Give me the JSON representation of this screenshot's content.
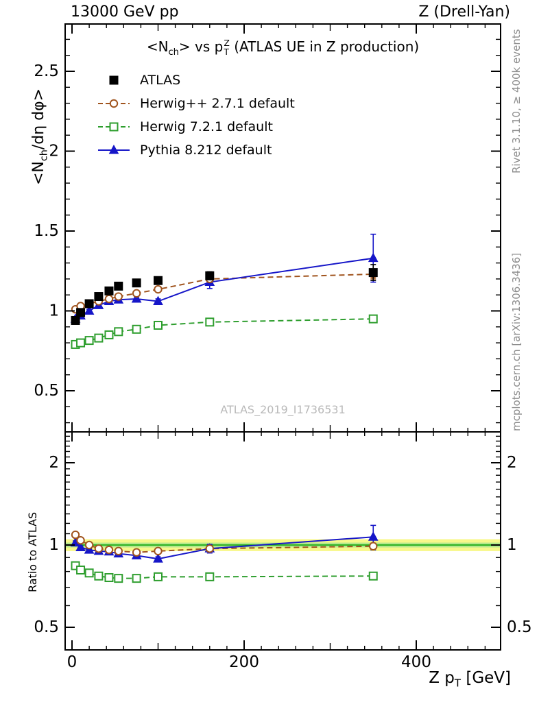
{
  "header": {
    "left": "13000 GeV pp",
    "right": "Z (Drell-Yan)"
  },
  "title_parts": {
    "p1": "<N",
    "sub1": "ch",
    "p2": "> vs p",
    "sup": "Z",
    "sub2": "T",
    "p3": " (ATLAS UE in Z production)"
  },
  "ylabel_parts": {
    "p1": "<N",
    "sub1": "ch",
    "p2": "/dη dφ>"
  },
  "xlabel_parts": {
    "p1": "Z p",
    "sub1": "T",
    "p2": " [GeV]"
  },
  "ratio_label": "Ratio to ATLAS",
  "side_notes": {
    "top": "Rivet 3.1.10, ≥ 400k events",
    "bottom": "mcplots.cern.ch [arXiv:1306.3436]"
  },
  "watermark": "ATLAS_2019_I1736531",
  "chart_data": {
    "type": "line",
    "title": "<N_ch> vs p_T^Z (ATLAS UE in Z production)",
    "xlabel": "Z p_T [GeV]",
    "ylabel": "<N_ch/dη dφ>",
    "ratio_ylabel": "Ratio to ATLAS",
    "grid": false,
    "legend_position": "top-left",
    "x_axis": {
      "range": [
        -8,
        498
      ],
      "major_ticks": [
        0,
        200,
        400
      ],
      "minor_step": 20,
      "medium_step": 100
    },
    "y_axis_main": {
      "range": [
        0.24,
        2.8
      ],
      "major_ticks": [
        0.5,
        1,
        1.5,
        2,
        2.5
      ],
      "minor_step": 0.1
    },
    "y_axis_ratio": {
      "range": [
        0.41,
        2.6
      ],
      "scale": "log",
      "major_ticks": [
        0.5,
        1,
        2
      ]
    },
    "x": [
      4,
      10,
      20,
      31,
      43,
      54,
      75,
      100,
      160,
      350
    ],
    "series": [
      {
        "name": "ATLAS",
        "color": "#000000",
        "marker": "square",
        "fill": true,
        "line": "none",
        "y": [
          0.94,
          0.99,
          1.045,
          1.09,
          1.125,
          1.155,
          1.175,
          1.19,
          1.22,
          1.24
        ],
        "yerr": [
          0.02,
          0.015,
          0.015,
          0.015,
          0.015,
          0.015,
          0.015,
          0.02,
          0.025,
          0.05
        ]
      },
      {
        "name": "Herwig++ 2.7.1 default",
        "color": "#a0541e",
        "marker": "circle",
        "fill": false,
        "line": "dashed",
        "y": [
          1.01,
          1.03,
          1.045,
          1.06,
          1.075,
          1.09,
          1.11,
          1.135,
          1.2,
          1.23
        ],
        "yerr": [
          0.01,
          0.01,
          0.01,
          0.01,
          0.01,
          0.01,
          0.01,
          0.012,
          0.02,
          0.03
        ],
        "ratio": [
          1.09,
          1.04,
          1.0,
          0.97,
          0.96,
          0.95,
          0.94,
          0.95,
          0.97,
          0.99
        ],
        "ratio_err": [
          0.015,
          0.012,
          0.01,
          0.01,
          0.01,
          0.01,
          0.01,
          0.012,
          0.02,
          0.025
        ]
      },
      {
        "name": "Herwig 7.2.1 default",
        "color": "#2e9e2e",
        "marker": "square",
        "fill": false,
        "line": "dashed",
        "y": [
          0.79,
          0.8,
          0.815,
          0.83,
          0.85,
          0.87,
          0.885,
          0.91,
          0.93,
          0.95
        ],
        "yerr": [
          0.01,
          0.01,
          0.01,
          0.01,
          0.01,
          0.01,
          0.01,
          0.012,
          0.015,
          0.02
        ],
        "ratio": [
          0.84,
          0.81,
          0.79,
          0.77,
          0.76,
          0.755,
          0.755,
          0.765,
          0.765,
          0.77
        ],
        "ratio_err": [
          0.012,
          0.01,
          0.009,
          0.009,
          0.009,
          0.009,
          0.009,
          0.01,
          0.013,
          0.018
        ]
      },
      {
        "name": "Pythia 8.212 default",
        "color": "#1616c8",
        "marker": "triangle",
        "fill": true,
        "line": "solid",
        "y": [
          0.95,
          0.97,
          1.0,
          1.035,
          1.06,
          1.07,
          1.075,
          1.06,
          1.18,
          1.33
        ],
        "yerr": [
          0.01,
          0.01,
          0.01,
          0.01,
          0.01,
          0.01,
          0.012,
          0.015,
          0.04,
          0.15
        ],
        "ratio": [
          1.02,
          0.98,
          0.96,
          0.95,
          0.945,
          0.93,
          0.915,
          0.89,
          0.97,
          1.07
        ],
        "ratio_err": [
          0.015,
          0.012,
          0.01,
          0.01,
          0.01,
          0.01,
          0.012,
          0.015,
          0.035,
          0.11
        ]
      }
    ],
    "band": {
      "center": 1.0,
      "outer_halfwidth": 0.05,
      "inner_halfwidth": 0.02,
      "outer_color": "#f8f88a",
      "inner_color": "#b4e88c",
      "line_color": "#00a000"
    }
  }
}
